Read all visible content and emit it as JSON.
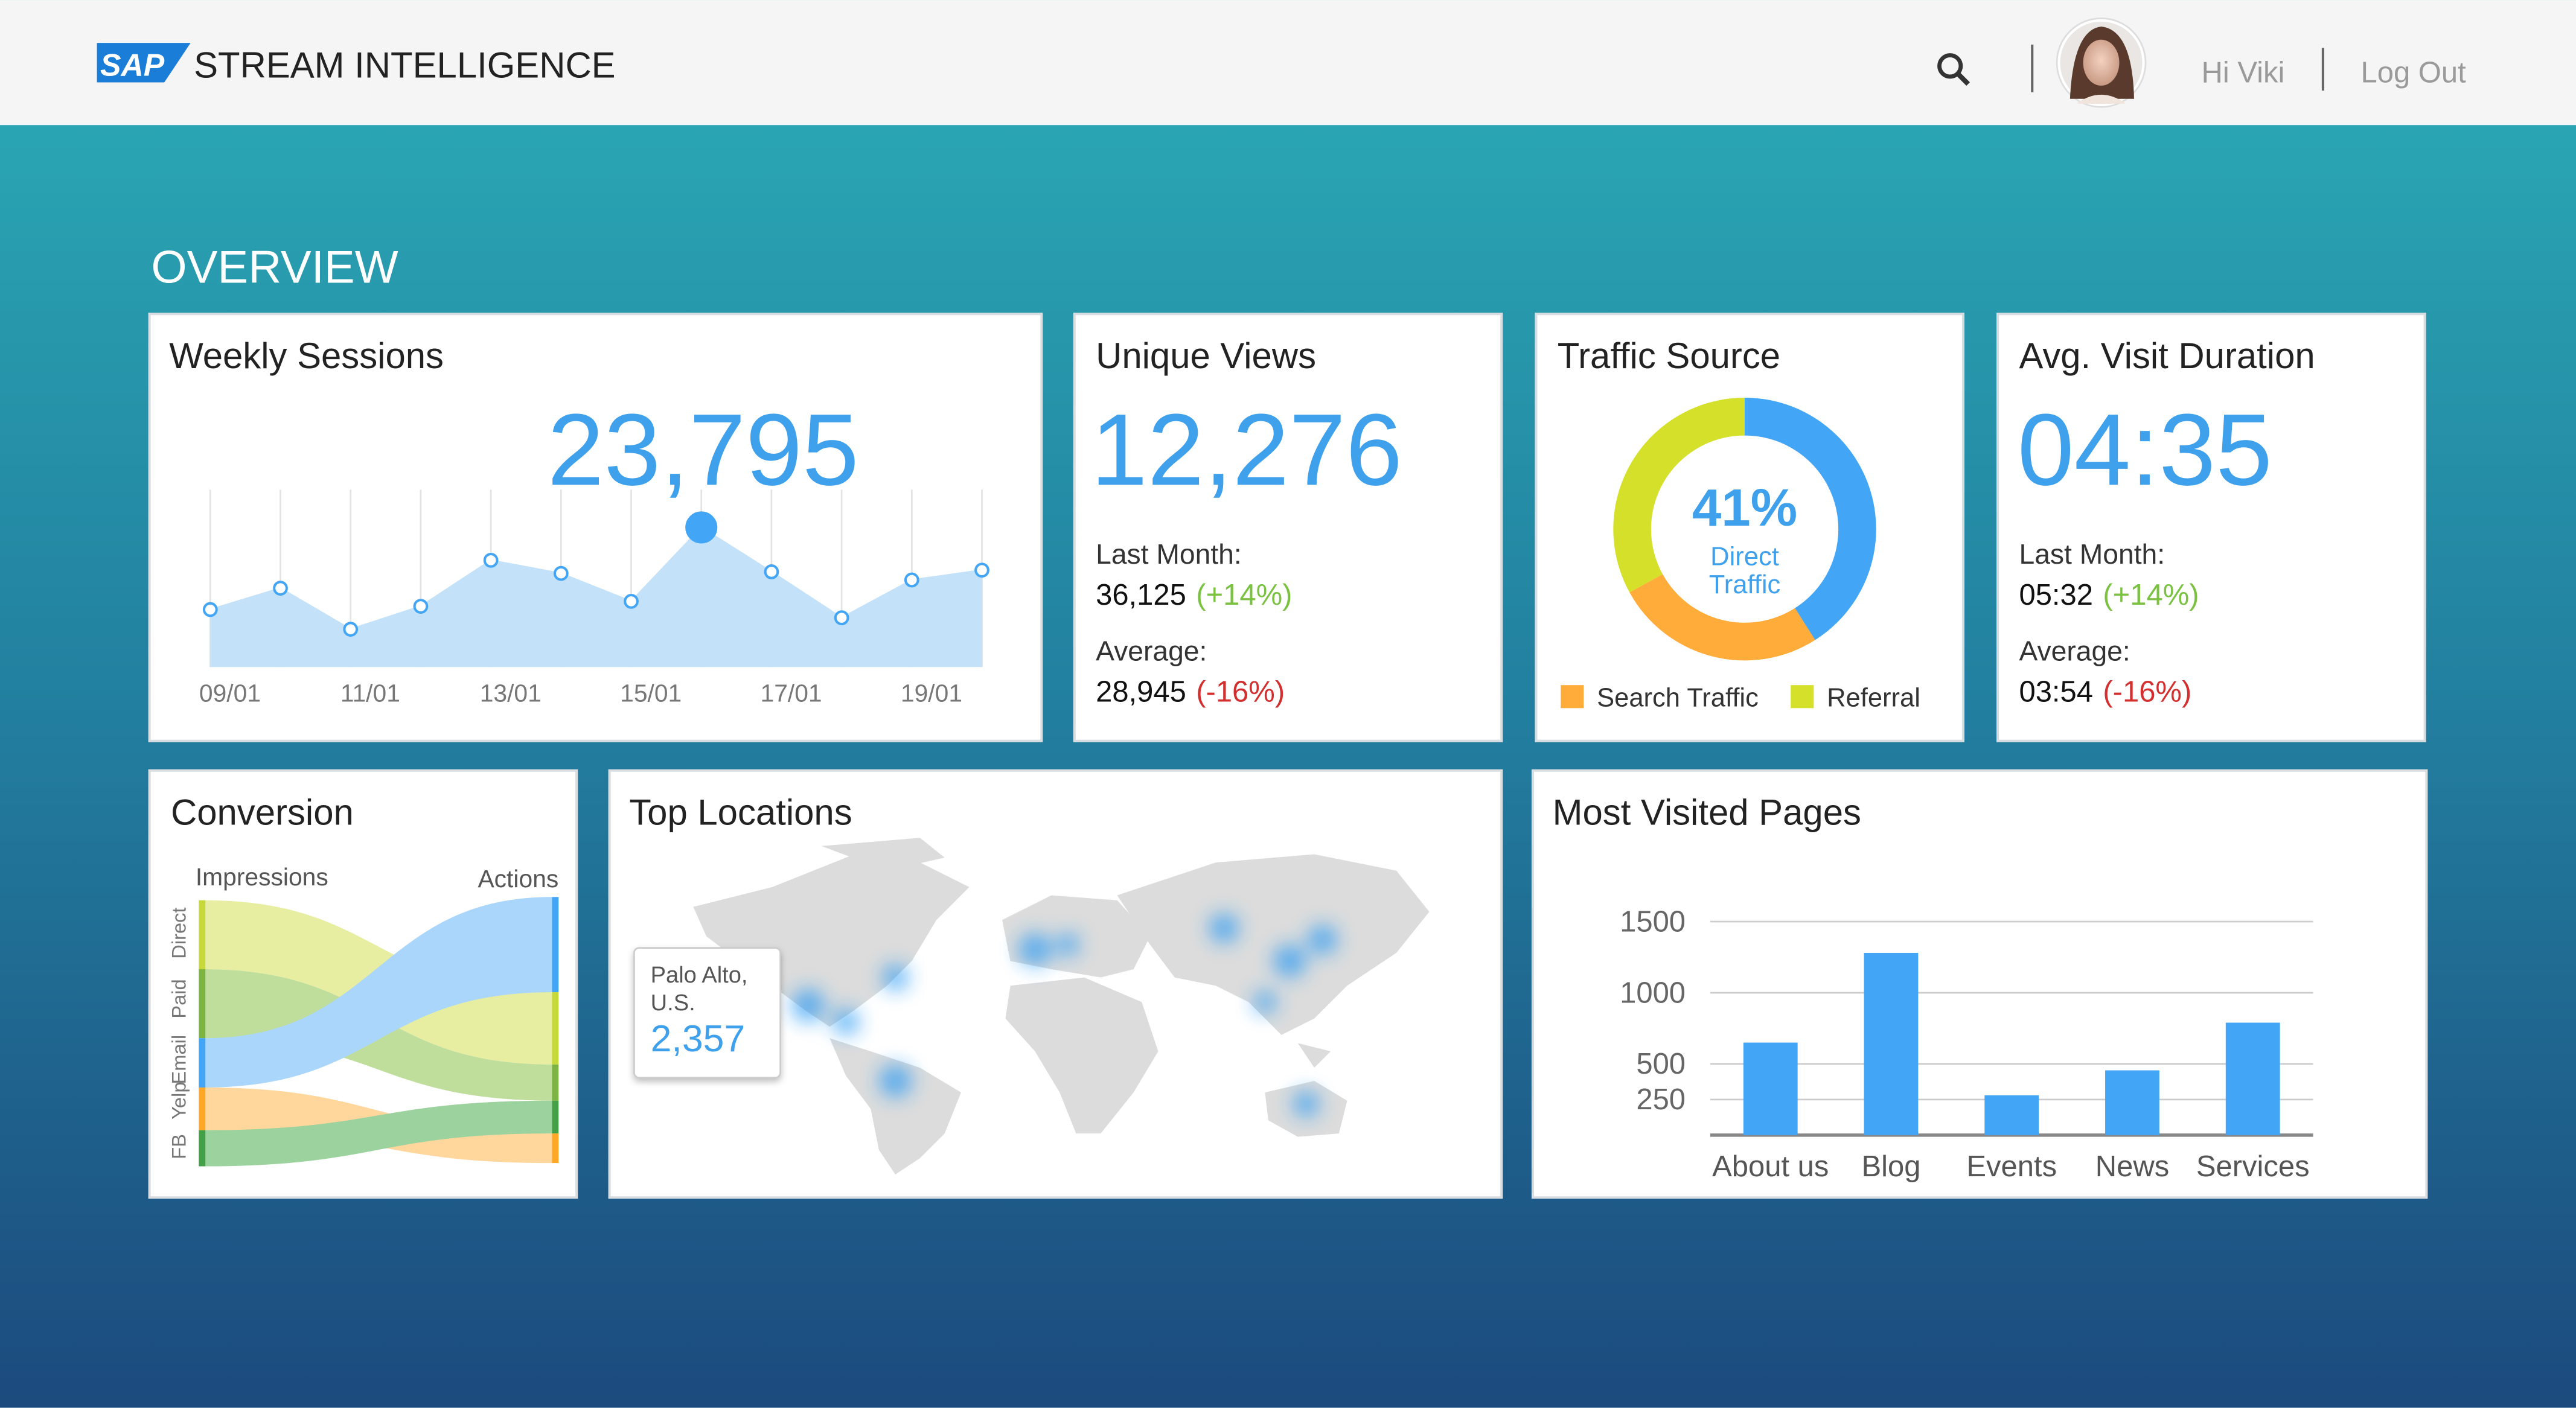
{
  "header": {
    "logo": "SAP",
    "app_name": "STREAM INTELLIGENCE",
    "greeting": "Hi Viki",
    "logout": "Log Out"
  },
  "page_title": "OVERVIEW",
  "cards": {
    "unique_views": {
      "title": "Unique Views",
      "value": "12,276",
      "last_month_label": "Last Month:",
      "last_month": "36,125",
      "last_month_change": "(+14%)",
      "average_label": "Average:",
      "average": "28,945",
      "average_change": "(-16%)"
    },
    "avg_visit_duration": {
      "title": "Avg. Visit Duration",
      "value": "04:35",
      "last_month_label": "Last Month:",
      "last_month": "05:32",
      "last_month_change": "(+14%)",
      "average_label": "Average:",
      "average": "03:54",
      "average_change": "(-16%)"
    },
    "conversion": {
      "title": "Conversion",
      "left_label": "Impressions",
      "right_label": "Actions",
      "sources": [
        "Direct",
        "Paid",
        "Email",
        "Yelp",
        "FB"
      ]
    },
    "top_locations": {
      "title": "Top Locations",
      "tooltip_place": [
        "Palo Alto,",
        "U.S."
      ],
      "tooltip_value": "2,357"
    }
  },
  "chart_data": [
    {
      "type": "area",
      "title": "Weekly Sessions",
      "headline": "23,795",
      "categories": [
        "09/01",
        null,
        "11/01",
        null,
        "13/01",
        null,
        "15/01",
        null,
        "17/01",
        null,
        "19/01",
        null
      ],
      "values": [
        35,
        48,
        23,
        37,
        65,
        57,
        40,
        85,
        58,
        30,
        53,
        59
      ],
      "ylim": [
        0,
        100
      ],
      "color": "#c3e1f8",
      "line_color": "#42a5f5"
    },
    {
      "type": "donut",
      "title": "Traffic Source",
      "categories": [
        "Direct Traffic",
        "Search Traffic",
        "Referral"
      ],
      "values": [
        41,
        26,
        33
      ],
      "value_labels": [
        "41%",
        null,
        null
      ],
      "colors": [
        "#42a5f5",
        "#ffac3a",
        "#d4e02a"
      ]
    },
    {
      "type": "bar",
      "title": "Most Visited Pages",
      "categories": [
        "About us",
        "Blog",
        "Events",
        "News",
        "Services"
      ],
      "values": [
        650,
        1280,
        280,
        455,
        790
      ],
      "color": "#42a5f5",
      "ylim": [
        0,
        1500
      ],
      "yticks": [
        250,
        500,
        1000,
        1500
      ],
      "grid": true
    }
  ]
}
